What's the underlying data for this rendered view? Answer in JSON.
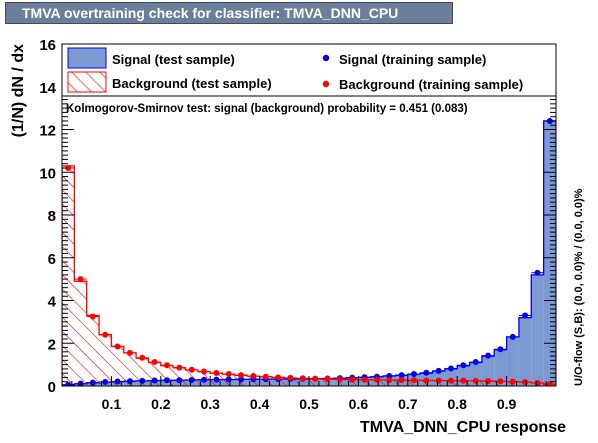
{
  "header": {
    "title": "TMVA overtraining check for classifier: TMVA_DNN_CPU"
  },
  "colors": {
    "signal_fill": "#7d99d1",
    "signal_line": "#0000ee",
    "background": "#ff0000"
  },
  "chart_data": {
    "type": "bar",
    "xlabel": "TMVA_DNN_CPU response",
    "ylabel": "(1/N)  dN / dx",
    "side_label": "U/O-flow (S,B): (0.0, 0.0)% / (0.0, 0.0)%",
    "ks_text": "Kolmogorov-Smirnov test: signal (background) probability = 0.451 (0.083)",
    "xlim": [
      0.0,
      1.0
    ],
    "ylim": [
      0,
      16
    ],
    "x_ticks": [
      "0.1",
      "0.2",
      "0.3",
      "0.4",
      "0.5",
      "0.6",
      "0.7",
      "0.8",
      "0.9"
    ],
    "y_ticks": [
      "0",
      "2",
      "4",
      "6",
      "8",
      "10",
      "12",
      "14",
      "16"
    ],
    "bin_edges_start": 0.0,
    "bin_width": 0.025,
    "legend": [
      {
        "key": "sig_test",
        "label": "Signal (test sample)"
      },
      {
        "key": "sig_train",
        "label": "Signal (training sample)"
      },
      {
        "key": "bkg_test",
        "label": "Background (test sample)"
      },
      {
        "key": "bkg_train",
        "label": "Background (training sample)"
      }
    ],
    "series": [
      {
        "name": "Signal (test sample)",
        "style": "filled_hist",
        "values": [
          0.05,
          0.1,
          0.15,
          0.18,
          0.2,
          0.22,
          0.24,
          0.25,
          0.26,
          0.27,
          0.28,
          0.29,
          0.3,
          0.3,
          0.31,
          0.31,
          0.32,
          0.32,
          0.33,
          0.33,
          0.34,
          0.35,
          0.36,
          0.38,
          0.4,
          0.43,
          0.47,
          0.5,
          0.55,
          0.6,
          0.7,
          0.8,
          0.95,
          1.1,
          1.4,
          1.7,
          2.3,
          3.2,
          5.2,
          12.4
        ]
      },
      {
        "name": "Background (test sample)",
        "style": "hatched_hist",
        "values": [
          10.3,
          4.9,
          3.3,
          2.4,
          1.85,
          1.55,
          1.3,
          1.1,
          0.95,
          0.85,
          0.75,
          0.67,
          0.6,
          0.55,
          0.5,
          0.46,
          0.43,
          0.4,
          0.37,
          0.35,
          0.33,
          0.32,
          0.31,
          0.3,
          0.29,
          0.28,
          0.28,
          0.27,
          0.27,
          0.26,
          0.25,
          0.25,
          0.24,
          0.24,
          0.23,
          0.22,
          0.2,
          0.18,
          0.14,
          0.08
        ]
      },
      {
        "name": "Signal (training sample)",
        "style": "points",
        "values": [
          0.06,
          0.11,
          0.16,
          0.19,
          0.21,
          0.23,
          0.24,
          0.26,
          0.27,
          0.27,
          0.28,
          0.29,
          0.3,
          0.31,
          0.31,
          0.32,
          0.32,
          0.33,
          0.33,
          0.34,
          0.34,
          0.35,
          0.37,
          0.39,
          0.41,
          0.44,
          0.47,
          0.51,
          0.56,
          0.62,
          0.71,
          0.82,
          0.97,
          1.12,
          1.42,
          1.72,
          2.3,
          3.3,
          5.3,
          12.4
        ]
      },
      {
        "name": "Background (training sample)",
        "style": "points",
        "values": [
          10.2,
          5.0,
          3.25,
          2.4,
          1.85,
          1.55,
          1.32,
          1.12,
          0.97,
          0.86,
          0.76,
          0.68,
          0.61,
          0.56,
          0.51,
          0.47,
          0.43,
          0.4,
          0.38,
          0.36,
          0.34,
          0.33,
          0.31,
          0.3,
          0.29,
          0.29,
          0.28,
          0.28,
          0.27,
          0.26,
          0.26,
          0.25,
          0.25,
          0.24,
          0.23,
          0.22,
          0.2,
          0.18,
          0.14,
          0.08
        ]
      }
    ]
  }
}
